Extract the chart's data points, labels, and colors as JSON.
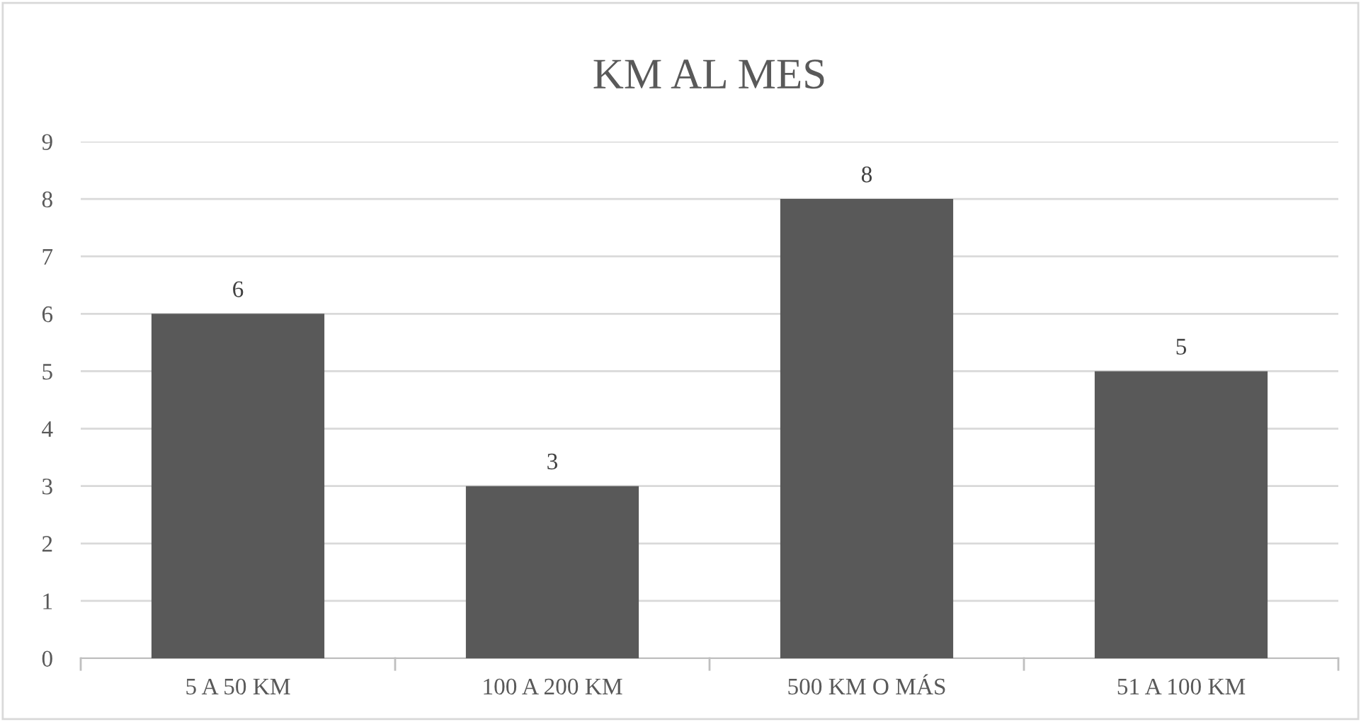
{
  "chart_data": {
    "type": "bar",
    "title": "KM AL MES",
    "categories": [
      "5 A 50 KM",
      "100 A 200 KM",
      "500 KM O MÁS",
      "51 A 100 KM"
    ],
    "values": [
      6,
      3,
      8,
      5
    ],
    "color": "#595959",
    "ylim": [
      0,
      9
    ],
    "yticks": [
      0,
      1,
      2,
      3,
      4,
      5,
      6,
      7,
      8,
      9
    ],
    "grid": "y",
    "data_labels": true
  }
}
